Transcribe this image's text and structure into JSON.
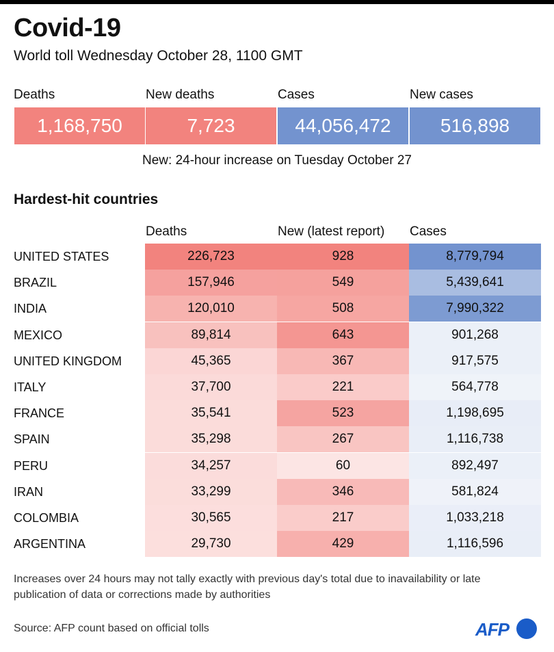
{
  "header": {
    "title": "Covid-19",
    "subtitle": "World toll Wednesday October 28, 1100 GMT"
  },
  "kpis": [
    {
      "label": "Deaths",
      "value": "1,168,750",
      "color": "#f2837e"
    },
    {
      "label": "New deaths",
      "value": "7,723",
      "color": "#f2837e"
    },
    {
      "label": "Cases",
      "value": "44,056,472",
      "color": "#7393cf"
    },
    {
      "label": "New cases",
      "value": "516,898",
      "color": "#7393cf"
    }
  ],
  "kpi_note": "New: 24-hour increase on Tuesday October 27",
  "section_title": "Hardest-hit countries",
  "chart_data": {
    "type": "table",
    "title": "Hardest-hit countries",
    "columns": [
      "Deaths",
      "New (latest report)",
      "Cases"
    ],
    "rows": [
      {
        "country": "UNITED STATES",
        "deaths": "226,723",
        "new": "928",
        "cases": "8,779,794",
        "deaths_n": 226723,
        "new_n": 928,
        "cases_n": 8779794
      },
      {
        "country": "BRAZIL",
        "deaths": "157,946",
        "new": "549",
        "cases": "5,439,641",
        "deaths_n": 157946,
        "new_n": 549,
        "cases_n": 5439641
      },
      {
        "country": "INDIA",
        "deaths": "120,010",
        "new": "508",
        "cases": "7,990,322",
        "deaths_n": 120010,
        "new_n": 508,
        "cases_n": 7990322
      },
      {
        "country": "MEXICO",
        "deaths": "89,814",
        "new": "643",
        "cases": "901,268",
        "deaths_n": 89814,
        "new_n": 643,
        "cases_n": 901268
      },
      {
        "country": "UNITED KINGDOM",
        "deaths": "45,365",
        "new": "367",
        "cases": "917,575",
        "deaths_n": 45365,
        "new_n": 367,
        "cases_n": 917575
      },
      {
        "country": "ITALY",
        "deaths": "37,700",
        "new": "221",
        "cases": "564,778",
        "deaths_n": 37700,
        "new_n": 221,
        "cases_n": 564778
      },
      {
        "country": "FRANCE",
        "deaths": "35,541",
        "new": "523",
        "cases": "1,198,695",
        "deaths_n": 35541,
        "new_n": 523,
        "cases_n": 1198695
      },
      {
        "country": "SPAIN",
        "deaths": "35,298",
        "new": "267",
        "cases": "1,116,738",
        "deaths_n": 35298,
        "new_n": 267,
        "cases_n": 1116738
      },
      {
        "country": "PERU",
        "deaths": "34,257",
        "new": "60",
        "cases": "892,497",
        "deaths_n": 34257,
        "new_n": 60,
        "cases_n": 892497
      },
      {
        "country": "IRAN",
        "deaths": "33,299",
        "new": "346",
        "cases": "581,824",
        "deaths_n": 33299,
        "new_n": 346,
        "cases_n": 581824
      },
      {
        "country": "COLOMBIA",
        "deaths": "30,565",
        "new": "217",
        "cases": "1,033,218",
        "deaths_n": 30565,
        "new_n": 217,
        "cases_n": 1033218
      },
      {
        "country": "ARGENTINA",
        "deaths": "29,730",
        "new": "429",
        "cases": "1,116,596",
        "deaths_n": 29730,
        "new_n": 429,
        "cases_n": 1116596
      }
    ],
    "colors": {
      "red": "#f2837e",
      "blue": "#7393cf"
    }
  },
  "footnote": "Increases over 24 hours may not tally exactly with previous day's total due to inavailability or late publication of data or corrections made by authorities",
  "source": "Source: AFP count based on official tolls",
  "logo_text": "AFP"
}
